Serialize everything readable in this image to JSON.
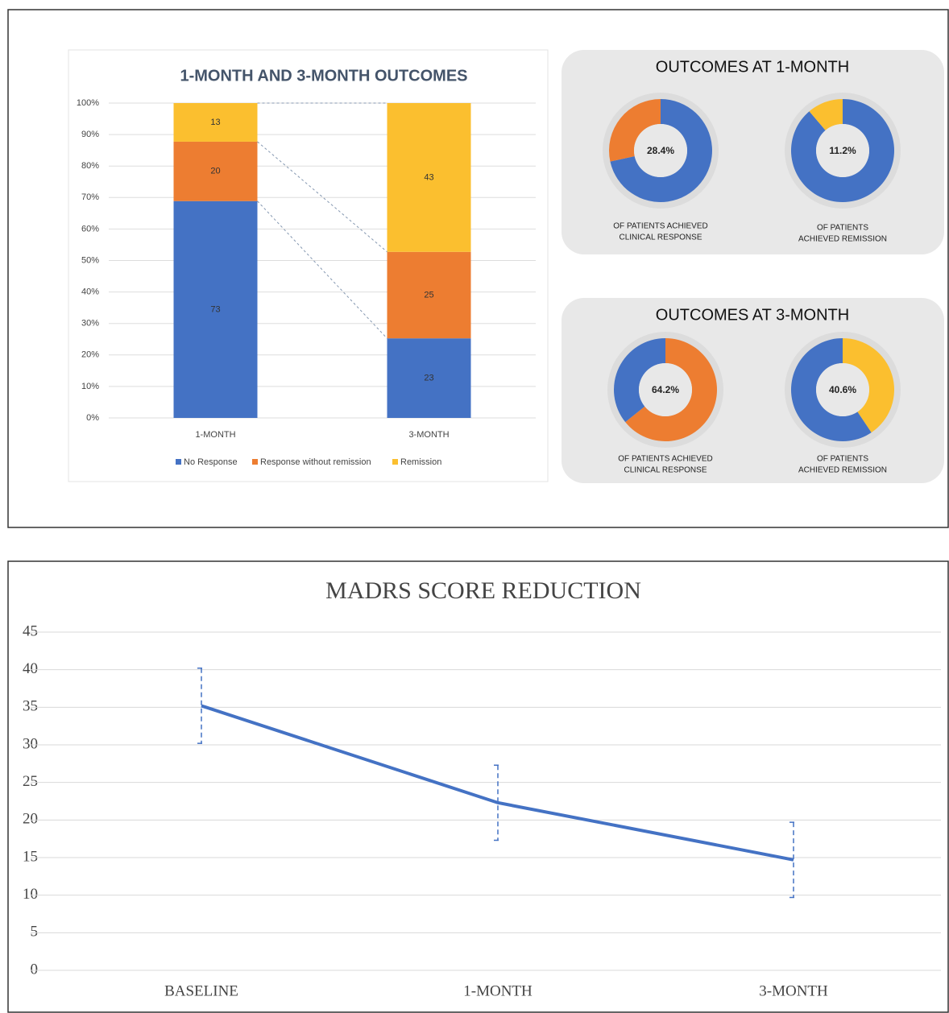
{
  "chart_data": [
    {
      "type": "bar",
      "stack": "percent",
      "title": "1-MONTH AND 3-MONTH OUTCOMES",
      "categories": [
        "1-MONTH",
        "3-MONTH"
      ],
      "series": [
        {
          "name": "No Response",
          "color": "#4472c4",
          "values": [
            73,
            23
          ]
        },
        {
          "name": "Response without remission",
          "color": "#ed7d31",
          "values": [
            20,
            25
          ]
        },
        {
          "name": "Remission",
          "color": "#fbbf2f",
          "values": [
            13,
            43
          ]
        }
      ],
      "ylim": [
        0,
        100
      ],
      "yticks": [
        {
          "value": 0,
          "label": "0%"
        },
        {
          "value": 10,
          "label": "10%"
        },
        {
          "value": 20,
          "label": "20%"
        },
        {
          "value": 30,
          "label": "30%"
        },
        {
          "value": 40,
          "label": "40%"
        },
        {
          "value": 50,
          "label": "50%"
        },
        {
          "value": 60,
          "label": "60%"
        },
        {
          "value": 70,
          "label": "70%"
        },
        {
          "value": 80,
          "label": "80%"
        },
        {
          "value": 90,
          "label": "90%"
        },
        {
          "value": 100,
          "label": "100%"
        }
      ],
      "grid": true,
      "legend": "bottom"
    },
    {
      "type": "pie",
      "title": "OUTCOMES AT 1-MONTH",
      "pies": [
        {
          "values": [
            71.6,
            28.4
          ],
          "colors": [
            "#4472c4",
            "#ed7d31"
          ],
          "value_labels": [
            null,
            "28.4%"
          ],
          "caption": [
            "OF PATIENTS ACHIEVED",
            "CLINICAL RESPONSE"
          ]
        },
        {
          "values": [
            88.8,
            11.2
          ],
          "colors": [
            "#4472c4",
            "#fbbf2f"
          ],
          "value_labels": [
            null,
            "11.2%"
          ],
          "caption": [
            "OF PATIENTS",
            "ACHIEVED REMISSION"
          ]
        }
      ]
    },
    {
      "type": "pie",
      "title": "OUTCOMES AT 3-MONTH",
      "pies": [
        {
          "values": [
            64.2,
            35.8
          ],
          "colors": [
            "#ed7d31",
            "#4472c4"
          ],
          "value_labels": [
            "64.2%",
            null
          ],
          "caption": [
            "OF PATIENTS ACHIEVED",
            "CLINICAL RESPONSE"
          ]
        },
        {
          "values": [
            40.6,
            59.4
          ],
          "colors": [
            "#fbbf2f",
            "#4472c4"
          ],
          "value_labels": [
            "40.6%",
            null
          ],
          "caption": [
            "OF PATIENTS",
            "ACHIEVED REMISSION"
          ]
        }
      ]
    },
    {
      "type": "line",
      "title": "MADRS SCORE REDUCTION",
      "categories": [
        "BASELINE",
        "1-MONTH",
        "3-MONTH"
      ],
      "values": [
        35.2,
        22.3,
        14.7
      ],
      "errors": [
        5,
        5,
        5
      ],
      "color": "#4472c4",
      "ylim": [
        0,
        45
      ],
      "yticks": [
        0,
        5,
        10,
        15,
        20,
        25,
        30,
        35,
        40,
        45
      ],
      "grid": true
    }
  ]
}
